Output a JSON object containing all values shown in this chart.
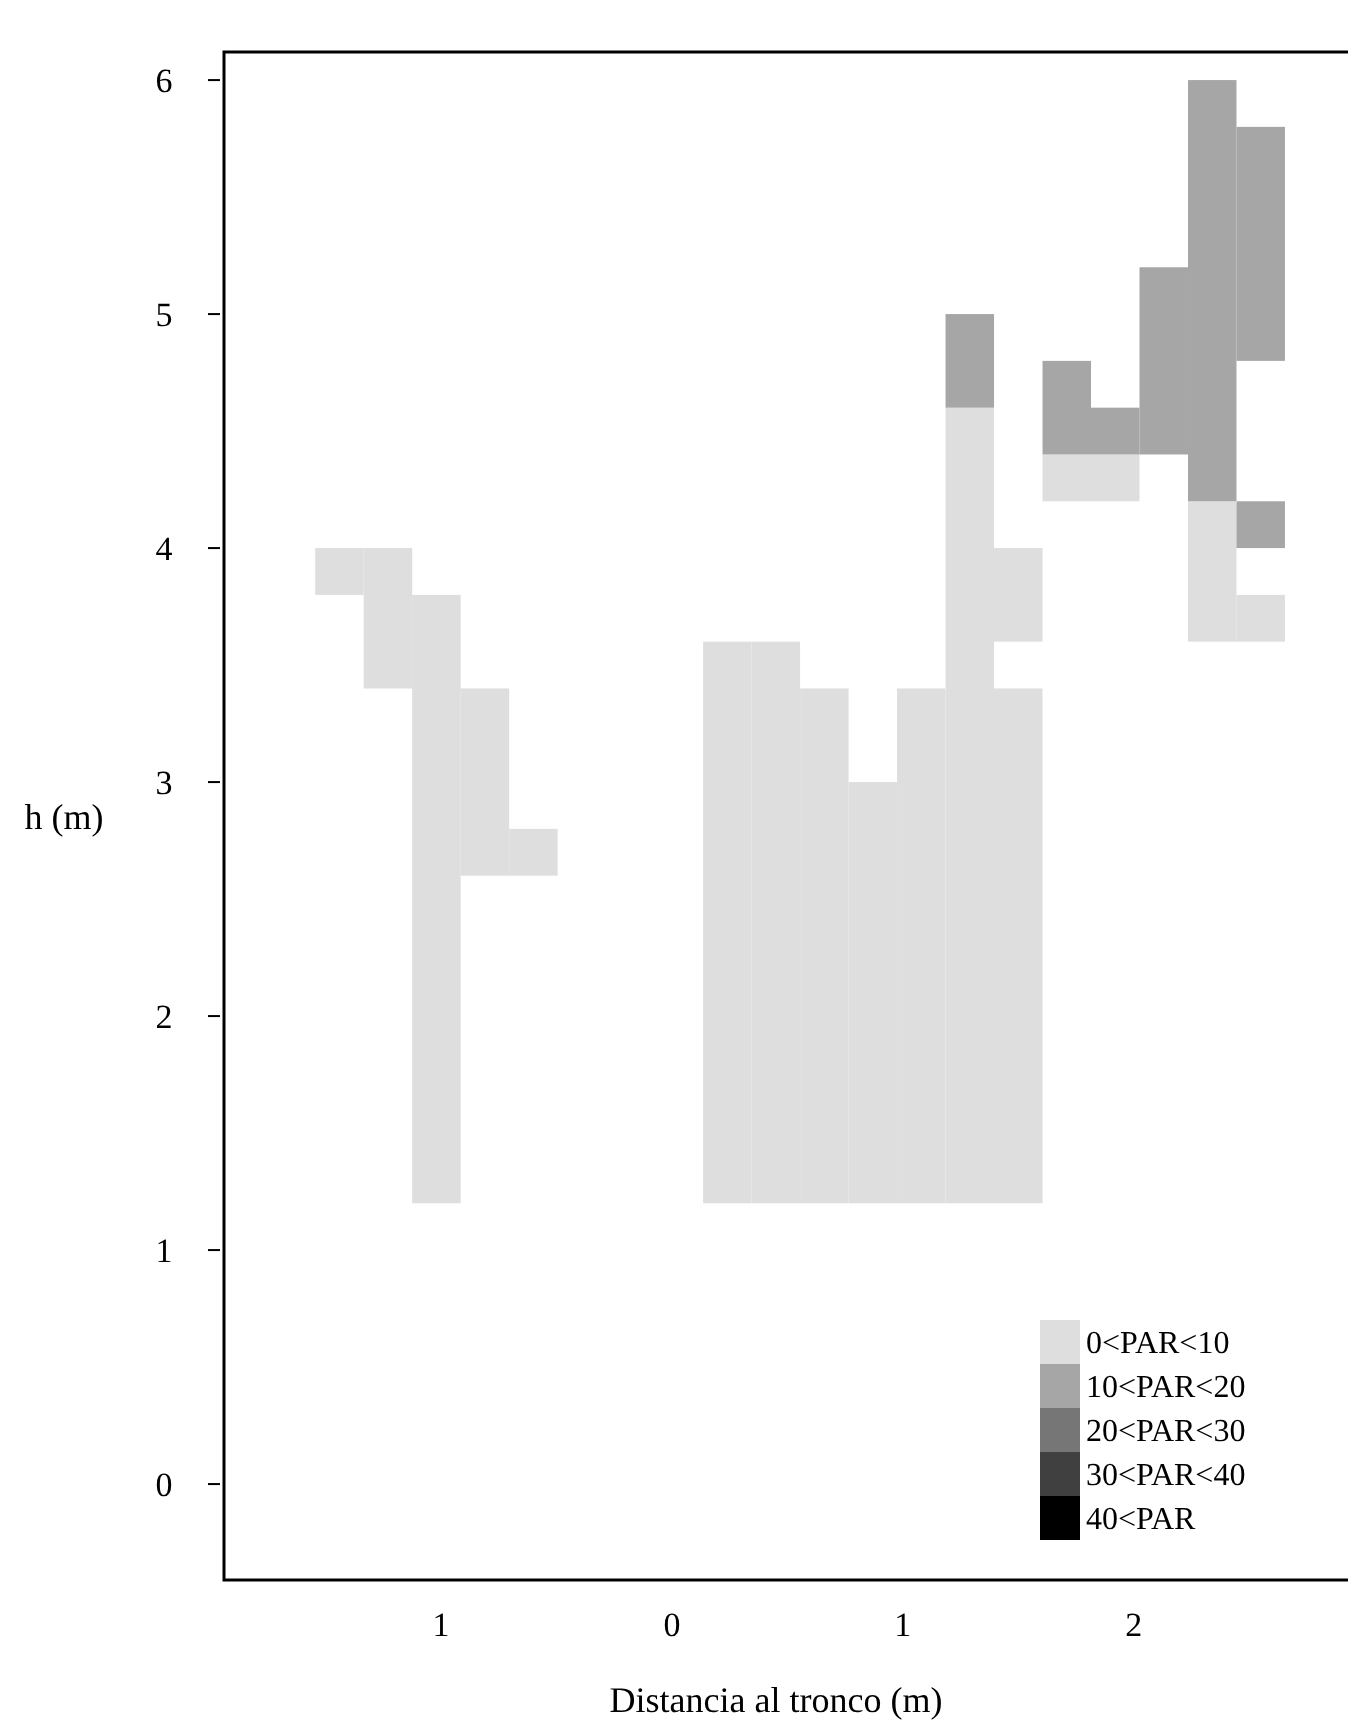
{
  "chart_data": {
    "type": "bar",
    "xlabel": "Distancia al tronco (m)",
    "ylabel": "h (m)",
    "xlim": [
      -1.94,
      2.98
    ],
    "xticks": [
      {
        "value": -1,
        "label": "1"
      },
      0,
      1,
      2
    ],
    "ylim": [
      -0.41,
      6.12
    ],
    "yticks": [
      0,
      1,
      2,
      3,
      4,
      5,
      6
    ],
    "legend": "bottom right",
    "series": [
      {
        "name": "0<PAR<10",
        "color": "#dedede",
        "x": [
          -1.44,
          -1.23,
          -1.02,
          -0.81,
          -0.6,
          0.24,
          0.45,
          0.66,
          0.87,
          1.08,
          1.29,
          1.5,
          1.71,
          1.92,
          2.34,
          2.55
        ],
        "base": [
          3.8,
          3.4,
          1.2,
          2.6,
          2.6,
          1.2,
          1.2,
          1.2,
          1.2,
          1.2,
          1.2,
          1.2,
          4.2,
          4.2,
          3.6,
          3.6
        ],
        "values": [
          0.2,
          0.6,
          2.6,
          0.8,
          0.2,
          2.4,
          2.4,
          2.2,
          1.8,
          2.2,
          3.4,
          2.2,
          0.2,
          0.2,
          0.6,
          0.2
        ]
      },
      {
        "name": "10<PAR<20",
        "color": "#a6a6a6",
        "x": [
          1.29,
          1.71,
          1.92,
          2.13,
          2.34,
          2.55
        ],
        "base": [
          4.6,
          4.4,
          4.4,
          4.4,
          4.2,
          4.8
        ],
        "values": [
          0.4,
          0.4,
          0.2,
          0.8,
          1.8,
          1.0
        ]
      },
      {
        "name": "20<PAR<30",
        "color": "#767676"
      },
      {
        "name": "30<PAR<40",
        "color": "#404040"
      },
      {
        "name": "40<PAR",
        "color": "#000000"
      },
      {
        "color": "#dedede",
        "x": [
          1.5
        ],
        "base": [
          3.6
        ],
        "values": [
          0.4
        ]
      },
      {
        "color": "#a6a6a6",
        "x": [
          2.55
        ],
        "base": [
          4.0
        ],
        "values": [
          0.2
        ]
      }
    ]
  }
}
